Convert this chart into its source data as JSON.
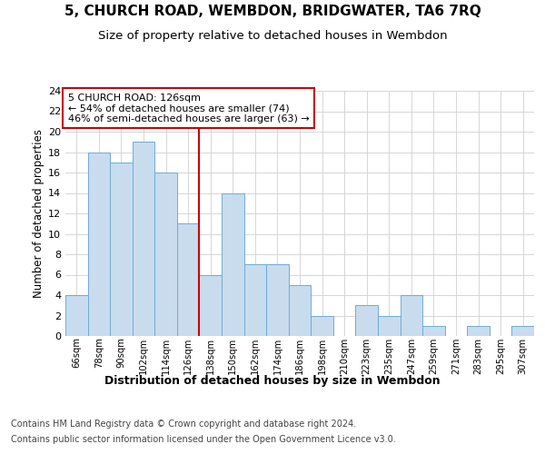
{
  "title1": "5, CHURCH ROAD, WEMBDON, BRIDGWATER, TA6 7RQ",
  "title2": "Size of property relative to detached houses in Wembdon",
  "xlabel": "Distribution of detached houses by size in Wembdon",
  "ylabel": "Number of detached properties",
  "categories": [
    "66sqm",
    "78sqm",
    "90sqm",
    "102sqm",
    "114sqm",
    "126sqm",
    "138sqm",
    "150sqm",
    "162sqm",
    "174sqm",
    "186sqm",
    "198sqm",
    "210sqm",
    "223sqm",
    "235sqm",
    "247sqm",
    "259sqm",
    "271sqm",
    "283sqm",
    "295sqm",
    "307sqm"
  ],
  "values": [
    4,
    18,
    17,
    19,
    16,
    11,
    6,
    14,
    7,
    7,
    5,
    2,
    0,
    3,
    2,
    4,
    1,
    0,
    1,
    0,
    1
  ],
  "bar_color": "#c8dcee",
  "bar_edge_color": "#6aaed6",
  "highlight_index": 5,
  "annotation_text": "5 CHURCH ROAD: 126sqm\n← 54% of detached houses are smaller (74)\n46% of semi-detached houses are larger (63) →",
  "annotation_box_color": "#ffffff",
  "annotation_box_edge_color": "#cc0000",
  "ylim": [
    0,
    24
  ],
  "yticks": [
    0,
    2,
    4,
    6,
    8,
    10,
    12,
    14,
    16,
    18,
    20,
    22,
    24
  ],
  "footer_line1": "Contains HM Land Registry data © Crown copyright and database right 2024.",
  "footer_line2": "Contains public sector information licensed under the Open Government Licence v3.0.",
  "bg_color": "#ffffff",
  "plot_bg_color": "#ffffff",
  "grid_color": "#d0d0d0",
  "title1_fontsize": 11,
  "title2_fontsize": 9.5,
  "footer_fontsize": 7.0,
  "ylabel_fontsize": 8.5,
  "xlabel_fontsize": 9
}
